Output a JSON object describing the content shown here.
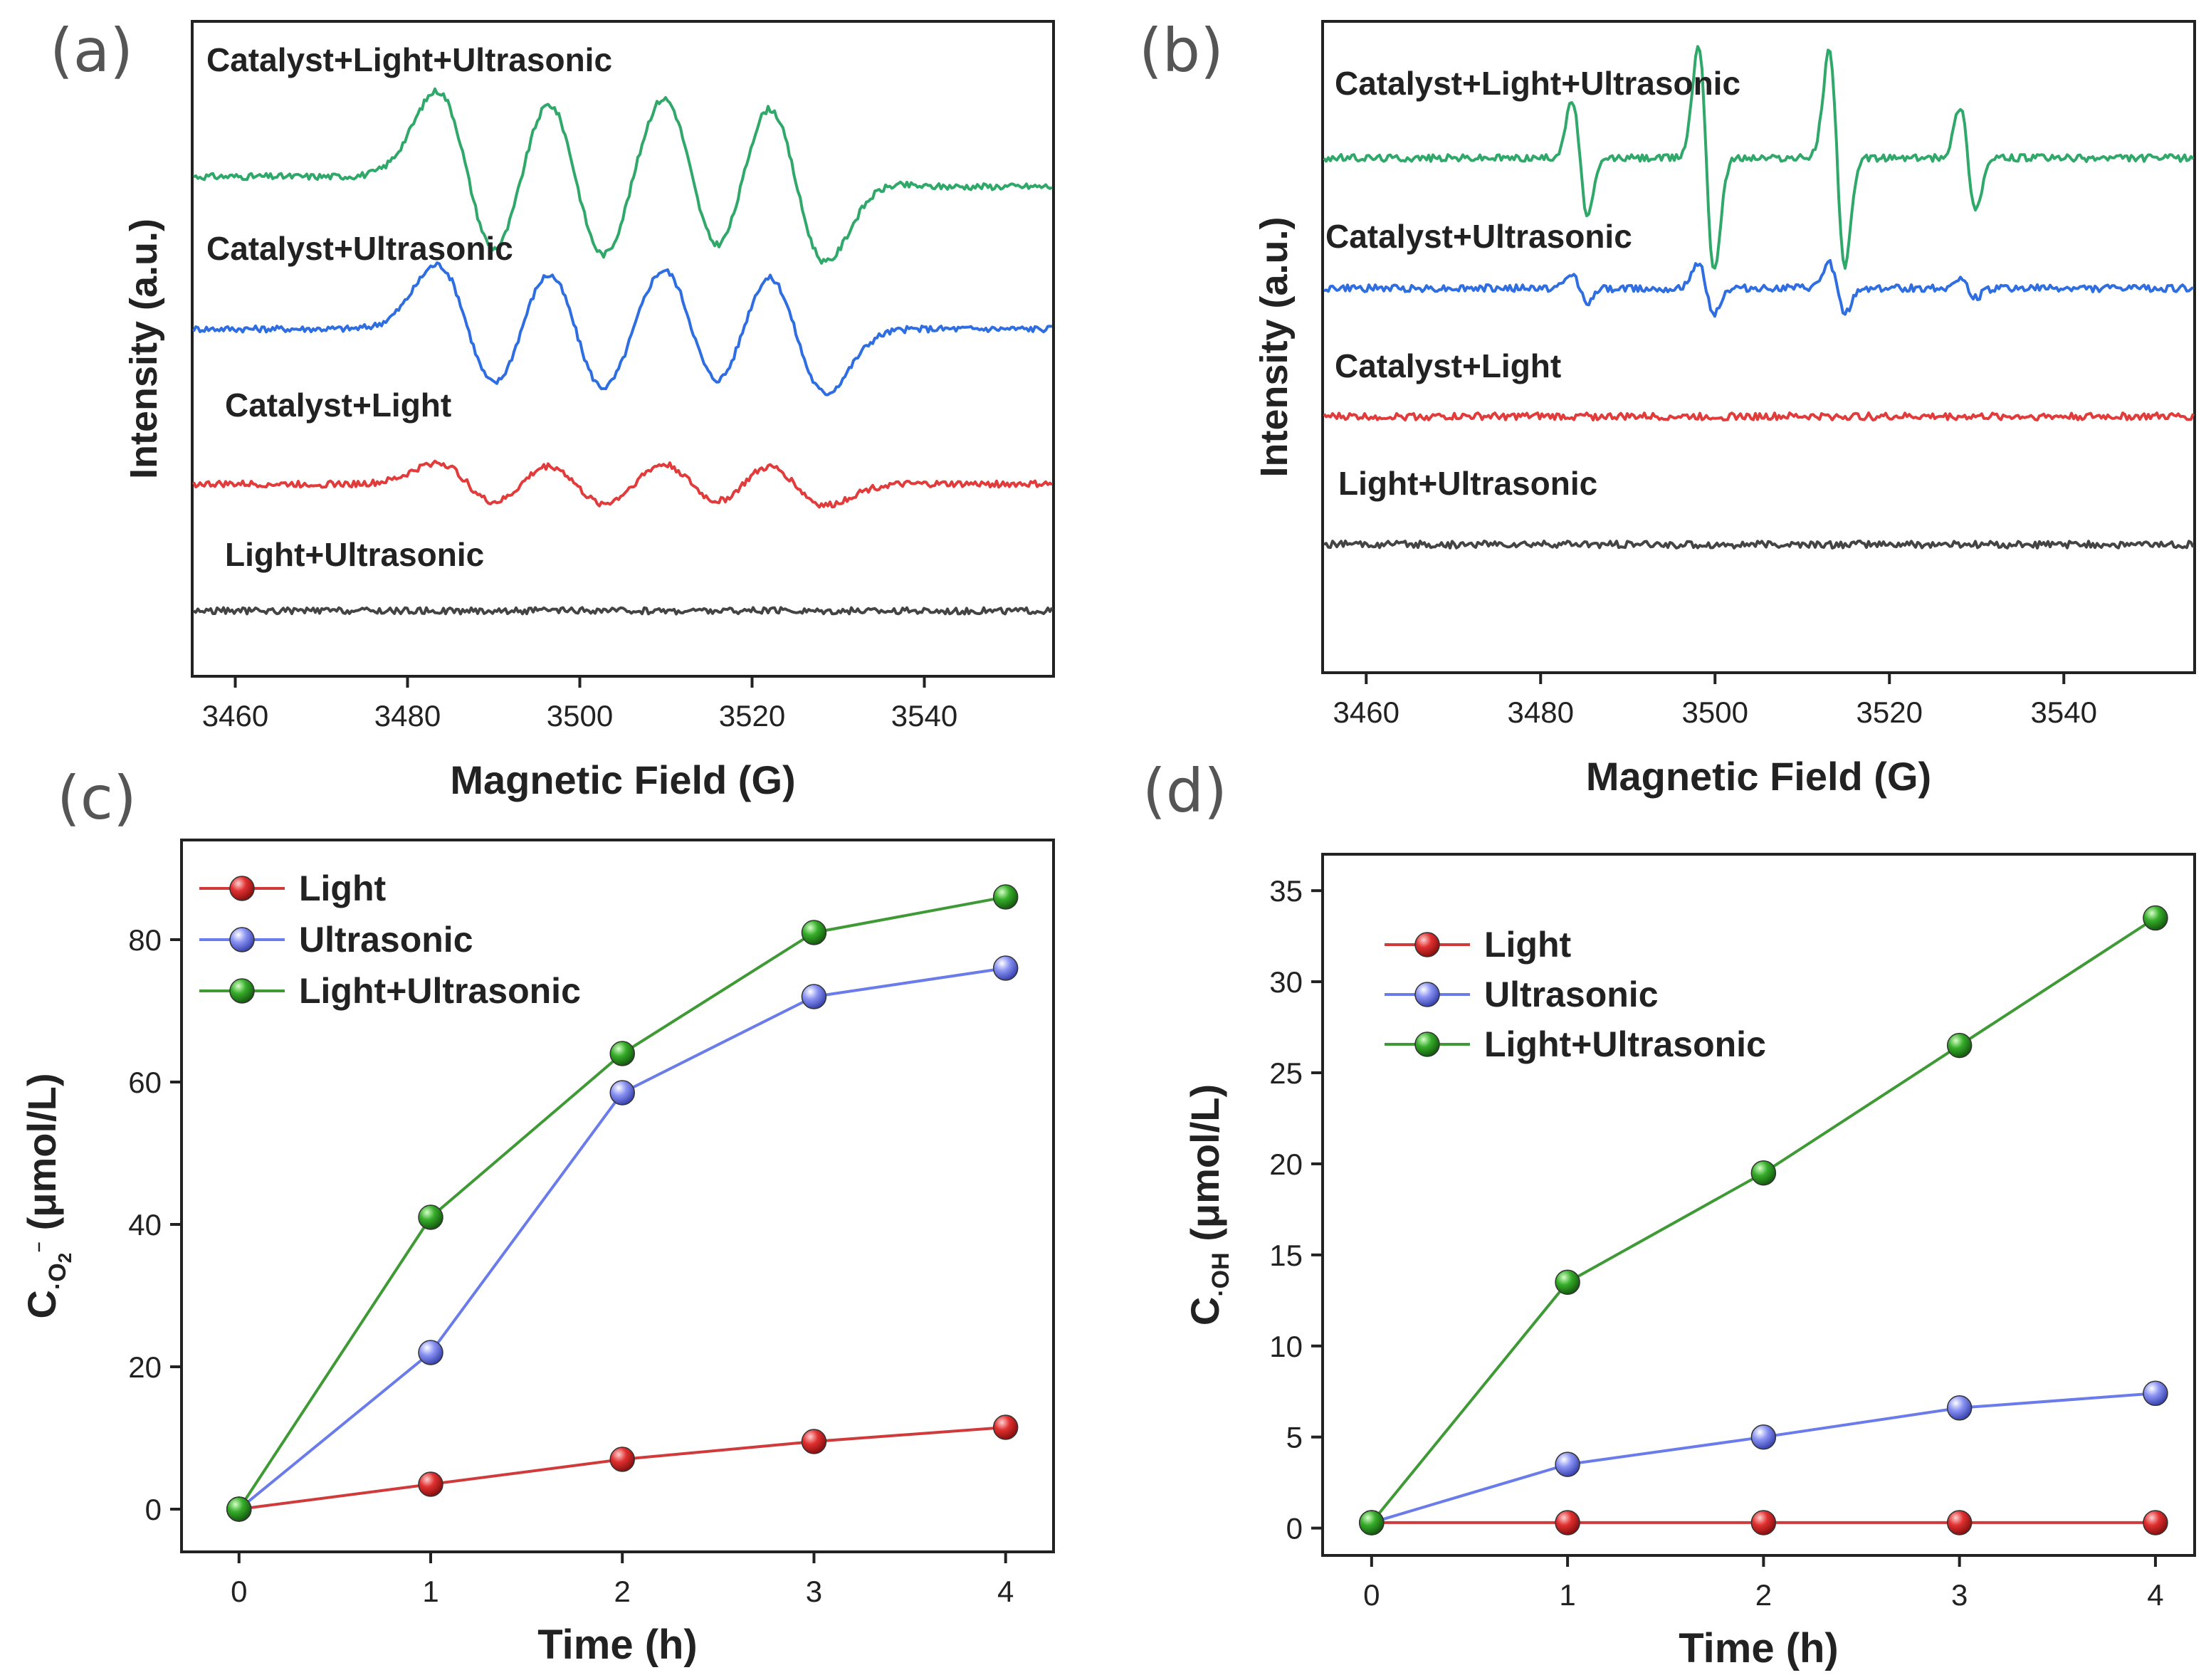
{
  "colors": {
    "green": "#2fa86a",
    "blue": "#2f6ee0",
    "red": "#e23b3b",
    "gray": "#444444",
    "marker_red": "#d93030",
    "marker_blue": "#7a86f0",
    "marker_green": "#31a42b",
    "line_red": "#d03a3a",
    "line_blue": "#6a7bea",
    "line_green": "#3f9a36"
  },
  "panels": {
    "a": {
      "label": "(a)"
    },
    "b": {
      "label": "(b)"
    },
    "c": {
      "label": "(c)"
    },
    "d": {
      "label": "(d)"
    }
  },
  "chart_data": [
    {
      "id": "a",
      "type": "line",
      "xlabel": "Magnetic Field (G)",
      "ylabel": "Intensity (a.u.)",
      "xlim": [
        3455,
        3555
      ],
      "xticks": [
        3460,
        3480,
        3500,
        3520,
        3540
      ],
      "series": [
        {
          "name": "Catalyst+Light+Ultrasonic",
          "color": "green",
          "peaks": [
            3487,
            3499.5,
            3513,
            3525
          ],
          "amplitude": 1.0,
          "offset": 3
        },
        {
          "name": "Catalyst+Ultrasonic",
          "color": "blue",
          "peaks": [
            3487,
            3499.5,
            3513,
            3525
          ],
          "amplitude": 0.75,
          "offset": 2
        },
        {
          "name": "Catalyst+Light",
          "color": "red",
          "peaks": [
            3487,
            3499.5,
            3513,
            3525
          ],
          "amplitude": 0.25,
          "offset": 1
        },
        {
          "name": "Light+Ultrasonic",
          "color": "gray",
          "peaks": [],
          "amplitude": 0.0,
          "offset": 0
        }
      ]
    },
    {
      "id": "b",
      "type": "line",
      "xlabel": "Magnetic Field (G)",
      "ylabel": "Intensity (a.u.)",
      "xlim": [
        3455,
        3555
      ],
      "xticks": [
        3460,
        3480,
        3500,
        3520,
        3540
      ],
      "series": [
        {
          "name": "Catalyst+Light+Ultrasonic",
          "color": "green",
          "peaks": [
            3484.5,
            3499,
            3514,
            3529
          ],
          "amplitudes": [
            0.5,
            1.0,
            0.95,
            0.45
          ],
          "offset": 3
        },
        {
          "name": "Catalyst+Ultrasonic",
          "color": "blue",
          "peaks": [
            3484.5,
            3499,
            3514,
            3529
          ],
          "amplitudes": [
            0.12,
            0.22,
            0.22,
            0.08
          ],
          "offset": 2
        },
        {
          "name": "Catalyst+Light",
          "color": "red",
          "peaks": [],
          "offset": 1
        },
        {
          "name": "Light+Ultrasonic",
          "color": "gray",
          "peaks": [],
          "offset": 0
        }
      ]
    },
    {
      "id": "c",
      "type": "line",
      "xlabel": "Time (h)",
      "ylabel": "C·O2⁻ (μmol/L)",
      "ylabel_main": "C",
      "ylabel_sub": "·O",
      "ylabel_sub2": "2",
      "ylabel_sup": "⁻",
      "ylabel_unit": " (μmol/L)",
      "xlim": [
        -0.3,
        4.25
      ],
      "ylim": [
        -6,
        94
      ],
      "xticks": [
        0,
        1,
        2,
        3,
        4
      ],
      "yticks": [
        0,
        20,
        40,
        60,
        80
      ],
      "legend": [
        "Light",
        "Ultrasonic",
        "Light+Ultrasonic"
      ],
      "x": [
        0,
        1,
        2,
        3,
        4
      ],
      "series": [
        {
          "name": "Light",
          "color": "marker_red",
          "line": "line_red",
          "values": [
            0,
            3.5,
            7,
            9.5,
            11.5
          ]
        },
        {
          "name": "Ultrasonic",
          "color": "marker_blue",
          "line": "line_blue",
          "values": [
            0,
            22,
            58.5,
            72,
            76
          ]
        },
        {
          "name": "Light+Ultrasonic",
          "color": "marker_green",
          "line": "line_green",
          "values": [
            0,
            41,
            64,
            81,
            86
          ]
        }
      ]
    },
    {
      "id": "d",
      "type": "line",
      "xlabel": "Time (h)",
      "ylabel": "C·OH (μmol/L)",
      "ylabel_main": "C",
      "ylabel_sub": "·OH",
      "ylabel_unit": " (μmol/L)",
      "xlim": [
        -0.25,
        4.2
      ],
      "ylim": [
        -1.5,
        37
      ],
      "xticks": [
        0,
        1,
        2,
        3,
        4
      ],
      "yticks": [
        0,
        5,
        10,
        15,
        20,
        25,
        30,
        35
      ],
      "legend": [
        "Light",
        "Ultrasonic",
        "Light+Ultrasonic"
      ],
      "x": [
        0,
        1,
        2,
        3,
        4
      ],
      "series": [
        {
          "name": "Light",
          "color": "marker_red",
          "line": "line_red",
          "values": [
            0.3,
            0.3,
            0.3,
            0.3,
            0.3
          ]
        },
        {
          "name": "Ultrasonic",
          "color": "marker_blue",
          "line": "line_blue",
          "values": [
            0.3,
            3.5,
            5,
            6.6,
            7.4
          ]
        },
        {
          "name": "Light+Ultrasonic",
          "color": "marker_green",
          "line": "line_green",
          "values": [
            0.3,
            13.5,
            19.5,
            26.5,
            33.5
          ]
        }
      ]
    }
  ]
}
